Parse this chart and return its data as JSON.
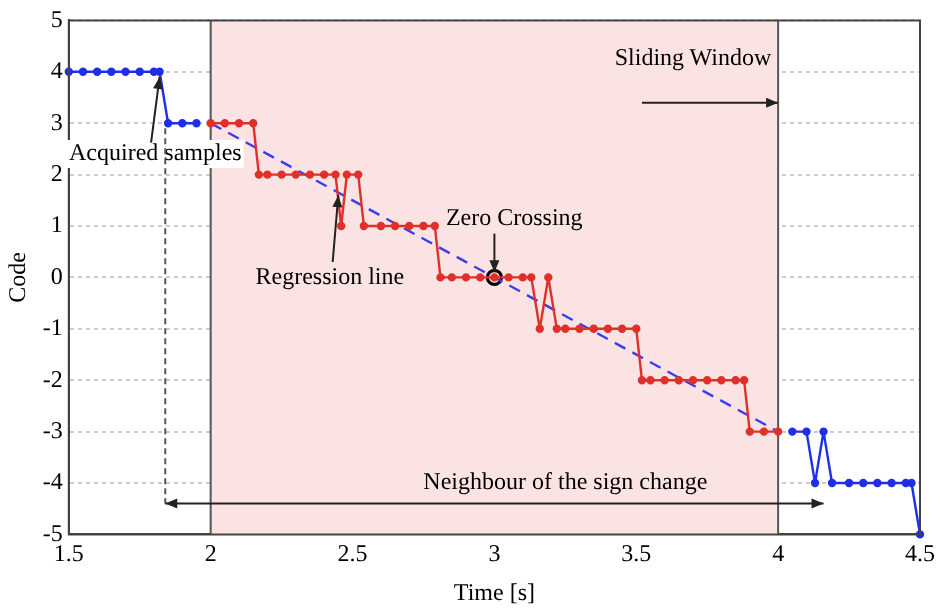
{
  "chart_data": {
    "type": "line",
    "xlabel": "Time [s]",
    "ylabel": "Code",
    "xlim": [
      1.5,
      4.5
    ],
    "ylim": [
      -5,
      5
    ],
    "xticks": [
      1.5,
      2,
      2.5,
      3,
      3.5,
      4,
      4.5
    ],
    "yticks": [
      -5,
      -4,
      -3,
      -2,
      -1,
      0,
      1,
      2,
      3,
      4,
      5
    ],
    "grid": true,
    "legend": false,
    "marker": "circle",
    "line_style": "solid",
    "bands": [
      {
        "axis": "x",
        "from": 2,
        "to": 4,
        "color": "#fce3e3"
      }
    ],
    "series": [
      {
        "color": "#1f2ee8",
        "x": [
          1.5,
          1.55,
          1.6,
          1.65,
          1.7,
          1.75,
          1.8,
          1.82,
          1.85,
          1.9,
          1.95
        ],
        "values": [
          4,
          4,
          4,
          4,
          4,
          4,
          4,
          4,
          3,
          3,
          3
        ]
      },
      {
        "color": "#e0302a",
        "x": [
          2.0,
          2.05,
          2.1,
          2.15,
          2.17,
          2.2,
          2.25,
          2.3,
          2.35,
          2.4,
          2.44,
          2.46,
          2.48,
          2.52,
          2.54,
          2.6,
          2.65,
          2.7,
          2.75,
          2.79,
          2.81,
          2.85,
          2.9,
          2.95,
          3.0,
          3.05,
          3.1,
          3.13,
          3.16,
          3.19,
          3.22,
          3.25,
          3.3,
          3.35,
          3.4,
          3.45,
          3.5,
          3.52,
          3.55,
          3.6,
          3.65,
          3.7,
          3.75,
          3.8,
          3.85,
          3.88,
          3.9,
          3.95,
          4.0
        ],
        "values": [
          3,
          3,
          3,
          3,
          2,
          2,
          2,
          2,
          2,
          2,
          2,
          1,
          2,
          2,
          1,
          1,
          1,
          1,
          1,
          1,
          0,
          0,
          0,
          0,
          0,
          0,
          0,
          0,
          -1,
          0,
          -1,
          -1,
          -1,
          -1,
          -1,
          -1,
          -1,
          -2,
          -2,
          -2,
          -2,
          -2,
          -2,
          -2,
          -2,
          -2,
          -3,
          -3,
          -3
        ]
      },
      {
        "color": "#1f2ee8",
        "x": [
          4.05,
          4.1,
          4.13,
          4.16,
          4.19,
          4.25,
          4.3,
          4.35,
          4.4,
          4.45,
          4.47,
          4.5
        ],
        "values": [
          -3,
          -3,
          -4,
          -3,
          -4,
          -4,
          -4,
          -4,
          -4,
          -4,
          -4,
          -5
        ]
      },
      {
        "type": "line",
        "color": "#3b3bf0",
        "marker": "none",
        "line_style": "dashed",
        "x": [
          2,
          4
        ],
        "values": [
          3,
          -3
        ]
      },
      {
        "type": "scatter",
        "color": "#000000",
        "marker": "circle",
        "x": [
          3.0
        ],
        "values": [
          0
        ]
      }
    ],
    "annotations": [
      {
        "text": "Acquired samples",
        "x": 1.82,
        "y": 3.9
      },
      {
        "text": "Regression line",
        "x": 2.45,
        "y": 1.6
      },
      {
        "text": "Zero Crossing",
        "x": 3.0,
        "y": 0.1
      },
      {
        "text": "Sliding Window",
        "x": 4.0,
        "y": 3.4
      },
      "Neighbour of the sign change"
    ]
  }
}
